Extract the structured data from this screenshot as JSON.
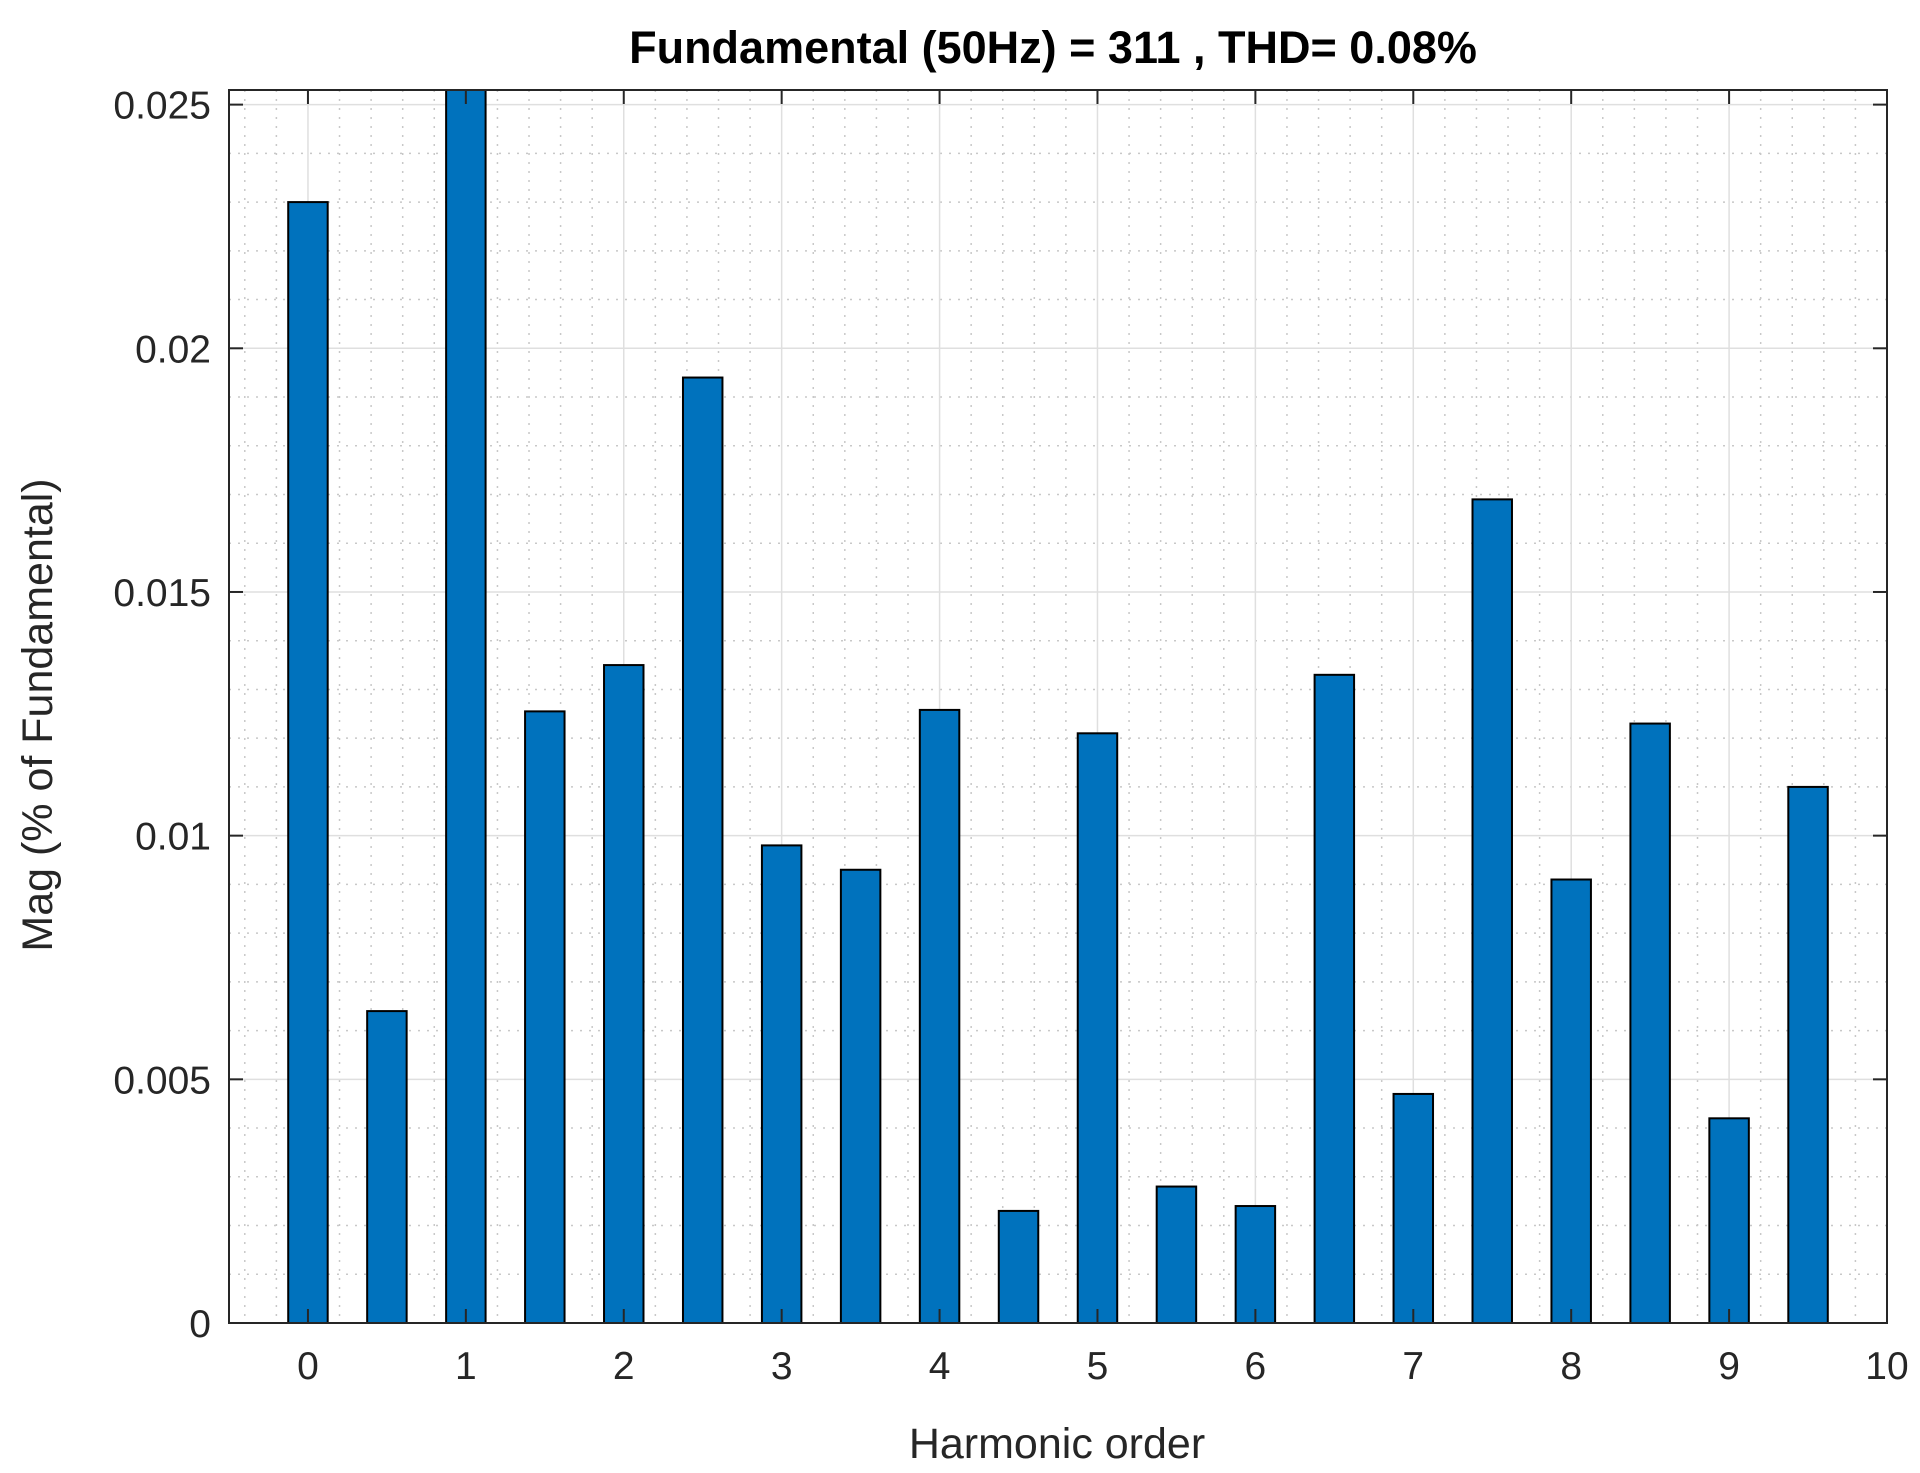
{
  "chart_data": {
    "type": "bar",
    "title": "Fundamental (50Hz) = 311 , THD= 0.08%",
    "xlabel": "Harmonic order",
    "ylabel": "Mag (% of Fundamental)",
    "x": [
      0,
      0.5,
      1,
      1.5,
      2,
      2.5,
      3,
      3.5,
      4,
      4.5,
      5,
      5.5,
      6,
      6.5,
      7,
      7.5,
      8,
      8.5,
      9,
      9.5
    ],
    "values": [
      0.023,
      0.0064,
      0.0253,
      0.01255,
      0.0135,
      0.0194,
      0.0098,
      0.0093,
      0.01258,
      0.0023,
      0.0121,
      0.0028,
      0.0024,
      0.0133,
      0.0047,
      0.0169,
      0.0091,
      0.0123,
      0.0042,
      0.011
    ],
    "xlim": [
      -0.5,
      10
    ],
    "ylim": [
      0,
      0.0253
    ],
    "x_ticks": [
      0,
      1,
      2,
      3,
      4,
      5,
      6,
      7,
      8,
      9,
      10
    ],
    "x_tick_labels": [
      "0",
      "1",
      "2",
      "3",
      "4",
      "5",
      "6",
      "7",
      "8",
      "9",
      "10"
    ],
    "y_ticks": [
      0,
      0.005,
      0.01,
      0.015,
      0.02,
      0.025
    ],
    "y_tick_labels": [
      "0",
      "0.005",
      "0.01",
      "0.015",
      "0.02",
      "0.025"
    ],
    "bar_width": 0.25,
    "grid": true,
    "minor_grid": true,
    "legend": false,
    "colors": {
      "bar_fill": "#0072BD",
      "bar_edge": "#000000",
      "axis": "#262626",
      "major_grid": "#dfdfdf",
      "minor_grid": "#c8c8c8"
    }
  }
}
